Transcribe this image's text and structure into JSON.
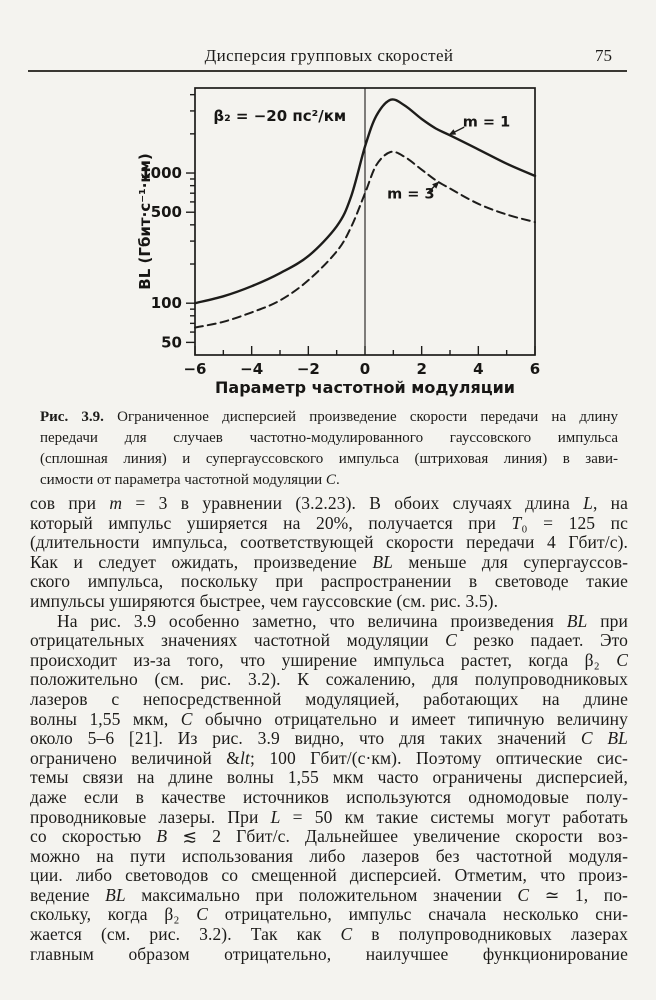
{
  "header": {
    "title": "Дисперсия групповых скоростей",
    "page_number": "75"
  },
  "figure_caption": {
    "label": "Рис. 3.9.",
    "justify_last": false,
    "lines": [
      "Ограниченное дисперсией произведение скорости передачи на длину",
      "передачи для случаев частотно-модулированного гауссовского импульса",
      "(сплошная линия) и супергауссовского импульса (штриховая линия) в зави-",
      "симости от параметра частотной модуляции C."
    ]
  },
  "body": {
    "paragraphs": [
      {
        "indent": false,
        "justify_last": false,
        "lines": [
          "сов при m = 3 в уравнении (3.2.23). В обоих случаях длина L, на",
          "который импульс уширяется на 20%, получается при T₀ = 125 пс",
          "(длительности импульса, соответствующей скорости передачи 4 Гбит/с).",
          "Как и следует ожидать, произведение BL меньше для супергауссов-",
          "ского импульса, поскольку при распространении в световоде такие",
          "импульсы уширяются быстрее, чем гауссовские (см. рис. 3.5)."
        ]
      },
      {
        "indent": true,
        "justify_last": true,
        "lines": [
          "На рис. 3.9 особенно заметно, что величина произведения BL при",
          "отрицательных значениях частотной модуляции C резко падает. Это",
          "происходит из-за того, что уширение импульса растет, когда β₂ C",
          "положительно (см. рис. 3.2). К сожалению, для полупроводниковых",
          "лазеров с непосредственной модуляцией, работающих на длине",
          "волны 1,55 мкм, C обычно отрицательно и имеет типичную величину",
          "около 5–6 [21]. Из рис. 3.9 видно, что для таких значений C BL",
          "ограничено величиной < 100 Гбит/(с·км). Поэтому оптические сис-",
          "темы связи на длине волны 1,55 мкм часто ограничены дисперсией,",
          "даже если в качестве источников используются одномодовые полу-",
          "проводниковые лазеры. При L = 50 км такие системы могут работать",
          "со скоростью B ≲ 2 Гбит/с. Дальнейшее увеличение скорости воз-",
          "можно на пути использования либо лазеров без частотной модуля-",
          "ции. либо световодов со смещенной дисперсией. Отметим, что произ-",
          "ведение BL максимально при положительном значении C ≃ 1, по-",
          "скольку, когда β₂ C отрицательно, импульс сначала несколько сни-",
          "жается (см. рис. 3.2). Так как C в полупроводниковых лазерах",
          "главным образом отрицательно, наилучшее функционирование"
        ]
      }
    ]
  },
  "chart_data": {
    "type": "line",
    "title": "",
    "xlabel": "Параметр частотной модуляции",
    "ylabel": "BL (Гбит·с⁻¹·км)",
    "annotation": "β₂ = −20 пс²/км",
    "annotation_pos": {
      "x": -5.35,
      "y": 2500
    },
    "xlim": [
      -6,
      6
    ],
    "ylim": [
      40,
      4500
    ],
    "y_scale": "log",
    "grid": false,
    "vline_x": 0,
    "x_ticks_major": [
      -6,
      -4,
      -2,
      0,
      2,
      4,
      6
    ],
    "x_ticks_minor": [
      -5,
      -3,
      -1,
      1,
      3,
      5
    ],
    "y_ticks_labeled": [
      50,
      100,
      500,
      1000
    ],
    "y_ticks_minor": [
      60,
      70,
      80,
      90,
      200,
      300,
      400,
      600,
      700,
      800,
      900,
      2000,
      3000,
      4000
    ],
    "ink_color": "#1d1c1a",
    "series": [
      {
        "name": "m = 1",
        "style": "solid",
        "label_pos": {
          "x": 3.45,
          "y": 2280
        },
        "pointer": {
          "x1": 3.5,
          "y1": 2250,
          "x2": 2.95,
          "y2": 1960
        },
        "x": [
          -6,
          -5,
          -4,
          -3,
          -2,
          -1,
          -0.5,
          0,
          0.4,
          0.9,
          1.4,
          2,
          2.5,
          3,
          4,
          5,
          6
        ],
        "y": [
          100,
          113,
          135,
          170,
          230,
          390,
          650,
          1600,
          2750,
          3650,
          3300,
          2600,
          2200,
          1950,
          1520,
          1180,
          950
        ]
      },
      {
        "name": "m = 3",
        "style": "dashed",
        "label_pos": {
          "x": 0.78,
          "y": 640
        },
        "pointer": {
          "x1": 2.2,
          "y1": 700,
          "x2": 2.62,
          "y2": 860
        },
        "x": [
          -6,
          -5,
          -4,
          -3,
          -2,
          -1,
          -0.5,
          0,
          0.4,
          0.9,
          1.4,
          2,
          2.5,
          3,
          4,
          5,
          6
        ],
        "y": [
          65,
          72,
          85,
          105,
          150,
          250,
          380,
          700,
          1150,
          1450,
          1330,
          1060,
          880,
          760,
          580,
          480,
          420
        ]
      }
    ]
  }
}
